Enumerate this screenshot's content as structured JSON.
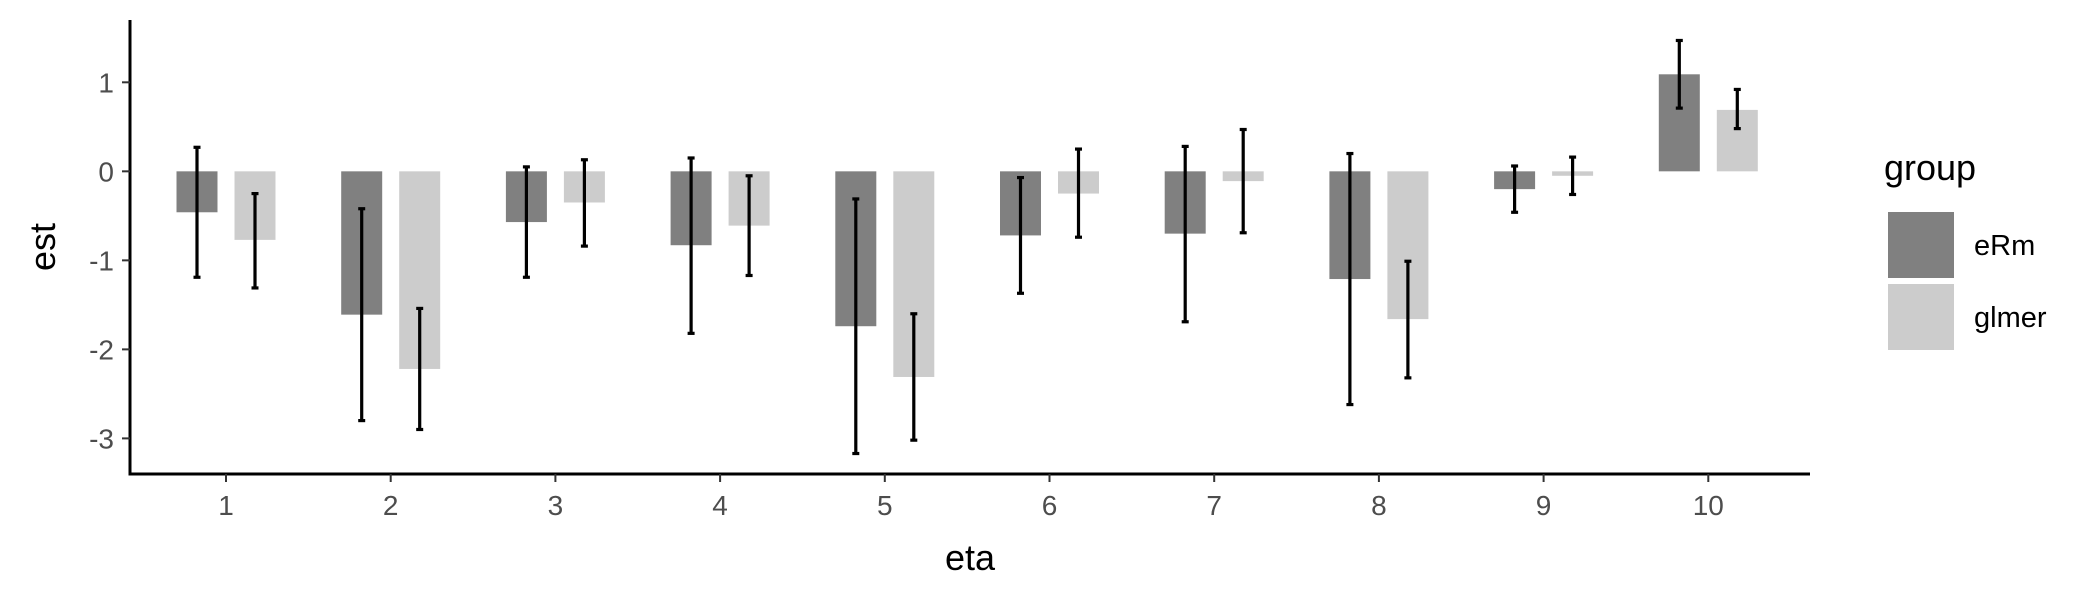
{
  "chart_data": {
    "type": "bar",
    "title": "",
    "xlabel": "eta",
    "ylabel": "est",
    "categories": [
      "1",
      "2",
      "3",
      "4",
      "5",
      "6",
      "7",
      "8",
      "9",
      "10"
    ],
    "ylim": [
      -3.4,
      1.7
    ],
    "yticks": [
      "1",
      "0",
      "-1",
      "-2",
      "-3"
    ],
    "ytick_values": [
      1,
      0,
      -1,
      -2,
      -3
    ],
    "grid": false,
    "legend": {
      "title": "group",
      "position": "right"
    },
    "error_bars": true,
    "series": [
      {
        "name": "eRm",
        "color": "#808080",
        "values": [
          -0.46,
          -1.61,
          -0.57,
          -0.83,
          -1.74,
          -0.72,
          -0.7,
          -1.21,
          -0.2,
          1.09
        ],
        "lower": [
          -1.19,
          -2.8,
          -1.19,
          -1.82,
          -3.17,
          -1.37,
          -1.69,
          -2.62,
          -0.46,
          0.71
        ],
        "upper": [
          0.27,
          -0.42,
          0.05,
          0.15,
          -0.31,
          -0.07,
          0.28,
          0.2,
          0.06,
          1.47
        ]
      },
      {
        "name": "glmer",
        "color": "#cccccc",
        "values": [
          -0.77,
          -2.22,
          -0.35,
          -0.61,
          -2.31,
          -0.25,
          -0.11,
          -1.66,
          -0.05,
          0.69
        ],
        "lower": [
          -1.31,
          -2.9,
          -0.84,
          -1.17,
          -3.02,
          -0.74,
          -0.69,
          -2.32,
          -0.26,
          0.48
        ],
        "upper": [
          -0.25,
          -1.54,
          0.13,
          -0.05,
          -1.6,
          0.25,
          0.47,
          -1.01,
          0.16,
          0.92
        ]
      }
    ]
  }
}
